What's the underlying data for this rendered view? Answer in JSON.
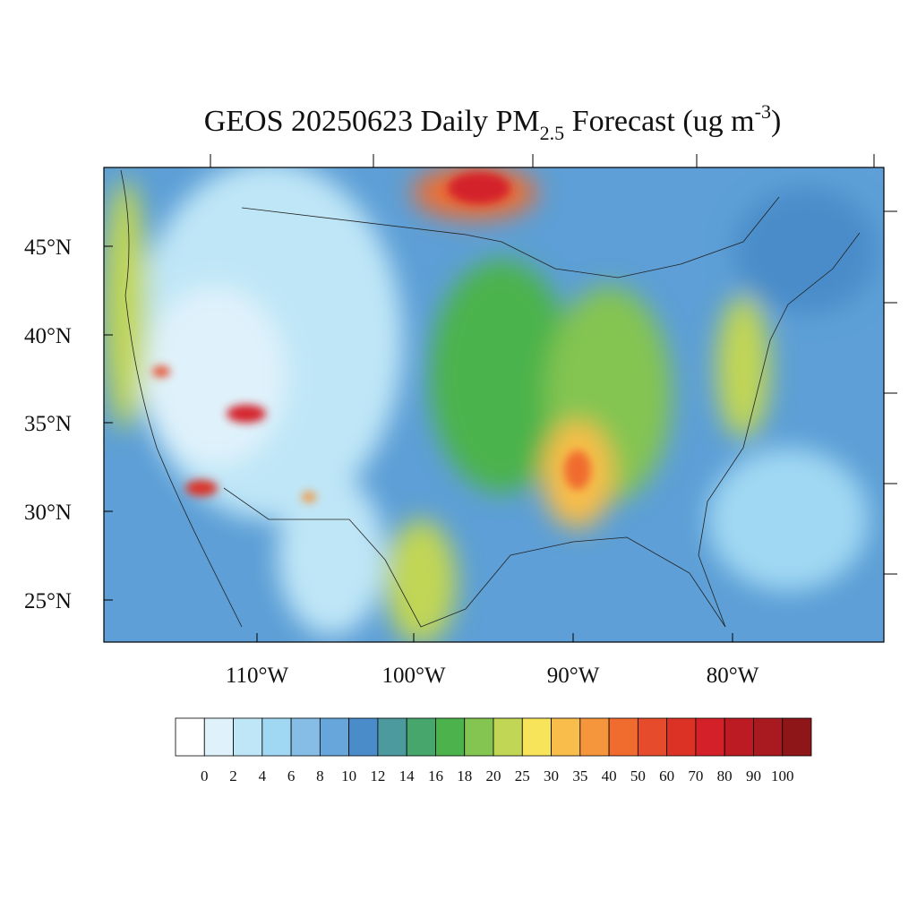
{
  "title": {
    "main": "GEOS 20250623 Daily PM",
    "subscript": "2.5",
    "rest": " Forecast (ug m",
    "superscript": "-3",
    "close": ")"
  },
  "map": {
    "lat_labels": [
      "45°N",
      "40°N",
      "35°N",
      "30°N",
      "25°N"
    ],
    "lon_labels": [
      "110°W",
      "100°W",
      "90°W",
      "80°W"
    ]
  },
  "colorbar": {
    "colors": [
      "#ffffff",
      "#dff2fb",
      "#bfe6f7",
      "#a0d8f3",
      "#86bde6",
      "#66a6da",
      "#4a8cc9",
      "#4c9a9d",
      "#46a66c",
      "#4cb34c",
      "#84c451",
      "#c1d654",
      "#f7e45a",
      "#f8bd4a",
      "#f5963c",
      "#f06c2e",
      "#e64b2b",
      "#dc3226",
      "#d42129",
      "#bc1b24",
      "#a81a1f",
      "#8e1518"
    ],
    "labels": [
      "0",
      "2",
      "4",
      "6",
      "8",
      "10",
      "12",
      "14",
      "16",
      "18",
      "20",
      "25",
      "30",
      "35",
      "40",
      "50",
      "60",
      "70",
      "80",
      "90",
      "100"
    ]
  }
}
